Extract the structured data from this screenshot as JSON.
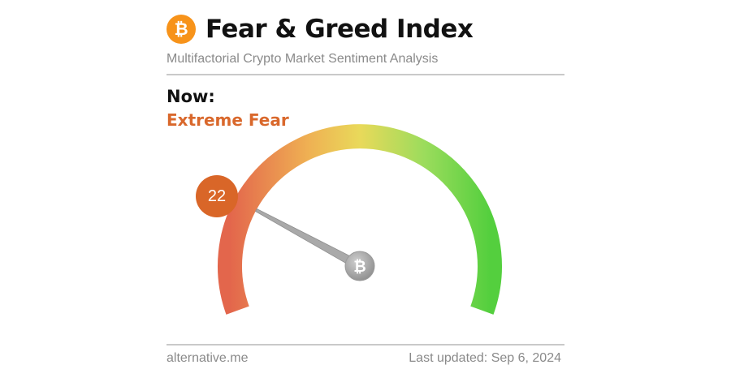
{
  "header": {
    "title": "Fear & Greed Index",
    "subtitle": "Multifactorial Crypto Market Sentiment Analysis",
    "logo_icon": "bitcoin-icon"
  },
  "now": {
    "label": "Now:",
    "classification": "Extreme Fear",
    "value": "22"
  },
  "gauge": {
    "min": 0,
    "max": 100,
    "value": 22,
    "colors": [
      "#e3664c",
      "#efb053",
      "#e9d95a",
      "#9bdc5c",
      "#54cf3e"
    ],
    "pivot_icon": "bitcoin-icon"
  },
  "footer": {
    "source": "alternative.me",
    "updated_label": "Last updated:",
    "updated_date": "Sep 6, 2024"
  },
  "colors": {
    "accent": "#d9682c",
    "bitcoin": "#f7931a",
    "needle": "#a9a9a9"
  }
}
